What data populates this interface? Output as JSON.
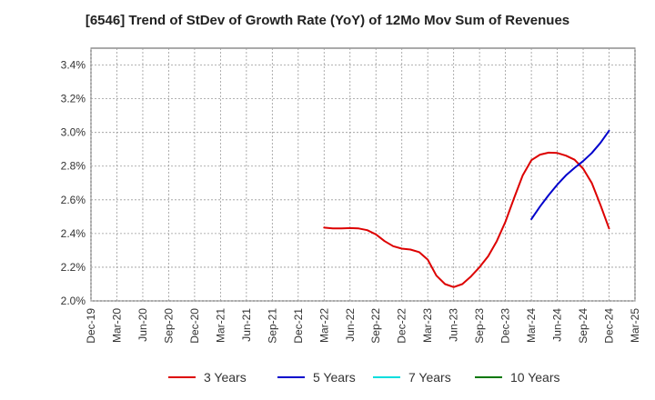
{
  "chart_data": {
    "type": "line",
    "title": "[6546]  Trend of StDev of Growth Rate (YoY) of 12Mo Mov Sum of Revenues",
    "xlabel": "",
    "ylabel": "",
    "ylim": [
      2.0,
      3.5
    ],
    "y_ticks": [
      2.0,
      2.2,
      2.4,
      2.6,
      2.8,
      3.0,
      3.2,
      3.4
    ],
    "y_tick_labels": [
      "2.0%",
      "2.2%",
      "2.4%",
      "2.6%",
      "2.8%",
      "3.0%",
      "3.2%",
      "3.4%"
    ],
    "x_tick_labels": [
      "Dec-19",
      "Mar-20",
      "Jun-20",
      "Sep-20",
      "Dec-20",
      "Mar-21",
      "Jun-21",
      "Sep-21",
      "Dec-21",
      "Mar-22",
      "Jun-22",
      "Sep-22",
      "Dec-22",
      "Mar-23",
      "Jun-23",
      "Sep-23",
      "Dec-23",
      "Mar-24",
      "Jun-24",
      "Sep-24",
      "Dec-24",
      "Mar-25"
    ],
    "x_range_months": [
      0,
      63
    ],
    "grid": true,
    "legend_position": "bottom",
    "series": [
      {
        "name": "3 Years",
        "color": "#dd0000",
        "x_months": [
          27,
          28,
          29,
          30,
          31,
          32,
          33,
          34,
          35,
          36,
          37,
          38,
          39,
          40,
          41,
          42,
          43,
          44,
          45,
          46,
          47,
          48,
          49,
          50,
          51,
          52,
          53,
          54,
          55,
          56,
          57,
          58,
          59,
          60
        ],
        "values": [
          2.435,
          2.43,
          2.43,
          2.432,
          2.43,
          2.42,
          2.395,
          2.355,
          2.325,
          2.31,
          2.305,
          2.29,
          2.245,
          2.15,
          2.1,
          2.082,
          2.1,
          2.145,
          2.2,
          2.265,
          2.355,
          2.47,
          2.61,
          2.745,
          2.835,
          2.868,
          2.88,
          2.878,
          2.862,
          2.838,
          2.785,
          2.7,
          2.57,
          2.43
        ]
      },
      {
        "name": "5 Years",
        "color": "#0000cc",
        "x_months": [
          51,
          52,
          53,
          54,
          55,
          56,
          57,
          58,
          59,
          60
        ],
        "values": [
          2.485,
          2.56,
          2.628,
          2.69,
          2.745,
          2.79,
          2.83,
          2.878,
          2.938,
          3.01
        ]
      },
      {
        "name": "7 Years",
        "color": "#00dddd",
        "x_months": [],
        "values": []
      },
      {
        "name": "10 Years",
        "color": "#007700",
        "x_months": [],
        "values": []
      }
    ]
  }
}
